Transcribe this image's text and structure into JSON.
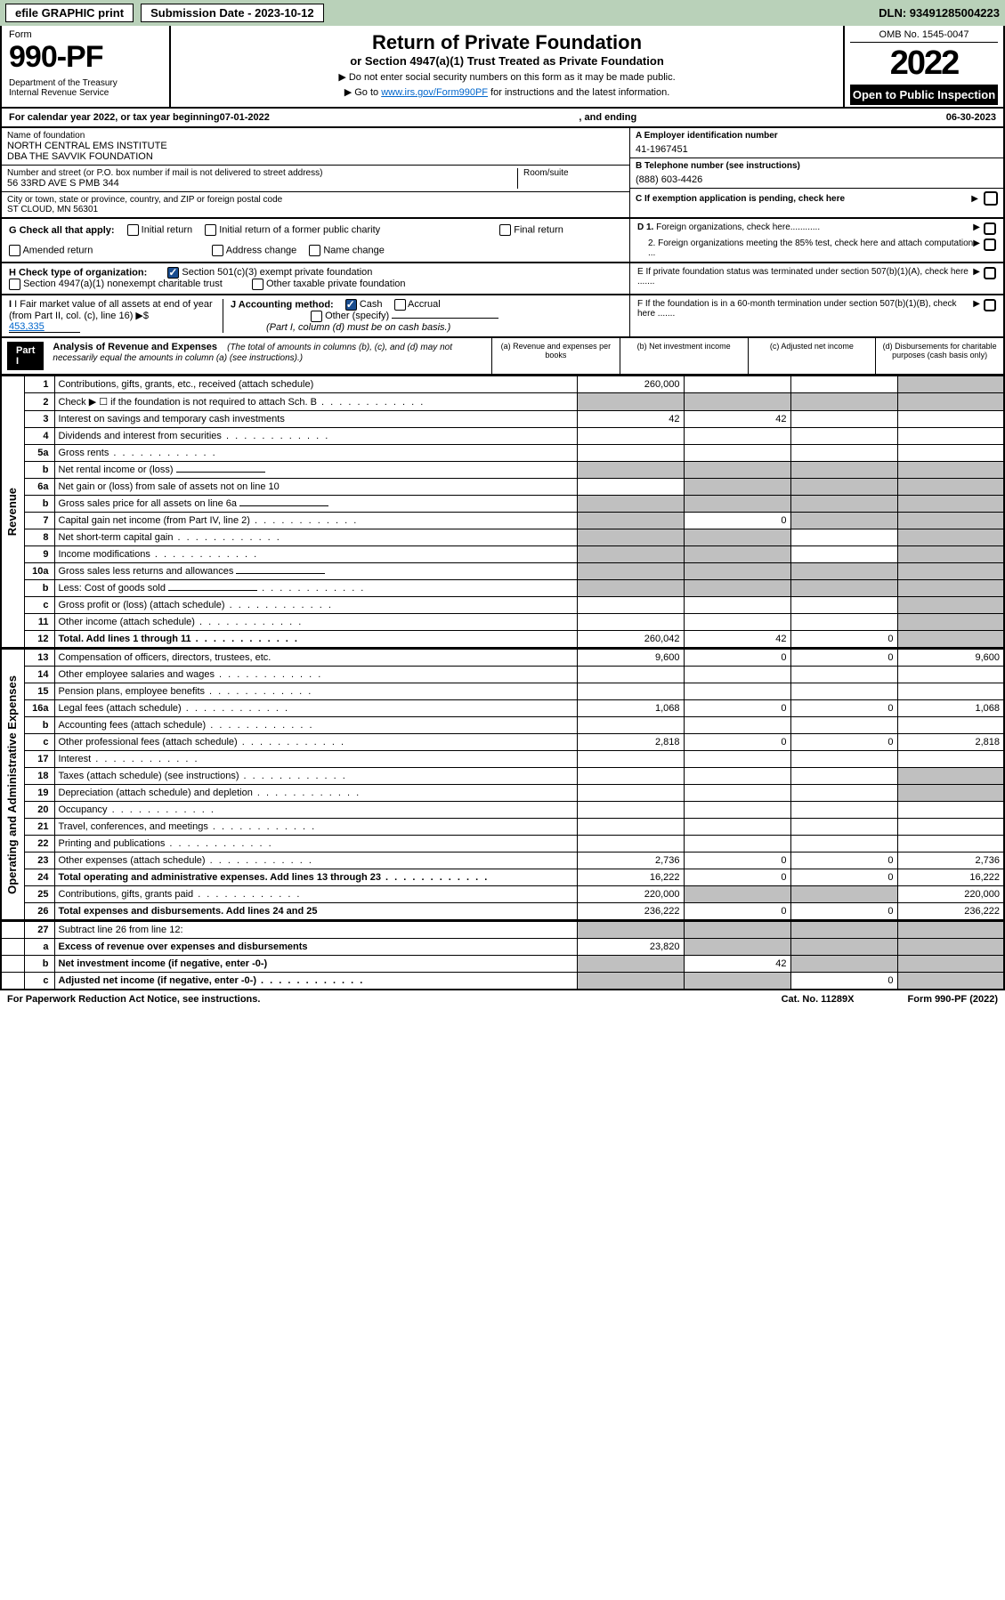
{
  "top": {
    "efile": "efile GRAPHIC print",
    "submission_label": "Submission Date - 2023-10-12",
    "dln": "DLN: 93491285004223"
  },
  "header": {
    "form_word": "Form",
    "form_num": "990-PF",
    "dept": "Department of the Treasury\nInternal Revenue Service",
    "title": "Return of Private Foundation",
    "subtitle": "or Section 4947(a)(1) Trust Treated as Private Foundation",
    "note1": "▶ Do not enter social security numbers on this form as it may be made public.",
    "note2_pre": "▶ Go to ",
    "note2_link": "www.irs.gov/Form990PF",
    "note2_post": " for instructions and the latest information.",
    "omb": "OMB No. 1545-0047",
    "year": "2022",
    "open": "Open to Public Inspection"
  },
  "cal": {
    "text_pre": "For calendar year 2022, or tax year beginning ",
    "begin": "07-01-2022",
    "text_mid": ", and ending ",
    "end": "06-30-2023"
  },
  "info": {
    "name_label": "Name of foundation",
    "name": "NORTH CENTRAL EMS INSTITUTE\nDBA THE SAVVIK FOUNDATION",
    "addr_label": "Number and street (or P.O. box number if mail is not delivered to street address)",
    "addr": "56 33RD AVE S PMB 344",
    "room_label": "Room/suite",
    "city_label": "City or town, state or province, country, and ZIP or foreign postal code",
    "city": "ST CLOUD, MN  56301",
    "a_label": "A Employer identification number",
    "a_val": "41-1967451",
    "b_label": "B Telephone number (see instructions)",
    "b_val": "(888) 603-4426",
    "c_label": "C If exemption application is pending, check here"
  },
  "checks": {
    "g_label": "G Check all that apply:",
    "g_opts": [
      "Initial return",
      "Initial return of a former public charity",
      "Final return",
      "Amended return",
      "Address change",
      "Name change"
    ],
    "h_label": "H Check type of organization:",
    "h_opt1": "Section 501(c)(3) exempt private foundation",
    "h_opt2": "Section 4947(a)(1) nonexempt charitable trust",
    "h_opt3": "Other taxable private foundation",
    "i_label": "I Fair market value of all assets at end of year (from Part II, col. (c), line 16)",
    "i_val": "453,335",
    "j_label": "J Accounting method:",
    "j_cash": "Cash",
    "j_accrual": "Accrual",
    "j_other": "Other (specify)",
    "j_note": "(Part I, column (d) must be on cash basis.)",
    "d1": "D 1. Foreign organizations, check here............",
    "d2": "2. Foreign organizations meeting the 85% test, check here and attach computation ...",
    "e": "E If private foundation status was terminated under section 507(b)(1)(A), check here .......",
    "f": "F  If the foundation is in a 60-month termination under section 507(b)(1)(B), check here ......."
  },
  "part1": {
    "label": "Part I",
    "title": "Analysis of Revenue and Expenses",
    "desc": "(The total of amounts in columns (b), (c), and (d) may not necessarily equal the amounts in column (a) (see instructions).)",
    "col_a": "(a)    Revenue and expenses per books",
    "col_b": "(b)    Net investment income",
    "col_c": "(c)    Adjusted net income",
    "col_d": "(d)   Disbursements for charitable purposes (cash basis only)"
  },
  "sides": {
    "revenue": "Revenue",
    "expenses": "Operating and Administrative Expenses"
  },
  "rows": [
    {
      "n": "1",
      "label": "Contributions, gifts, grants, etc., received (attach schedule)",
      "a": "260,000",
      "d_grey": true
    },
    {
      "n": "2",
      "label": "Check ▶ ☐ if the foundation is not required to attach Sch. B",
      "allgrey": true,
      "dots": true
    },
    {
      "n": "3",
      "label": "Interest on savings and temporary cash investments",
      "a": "42",
      "b": "42"
    },
    {
      "n": "4",
      "label": "Dividends and interest from securities",
      "dots": true
    },
    {
      "n": "5a",
      "label": "Gross rents",
      "dots": true
    },
    {
      "n": "b",
      "label": "Net rental income or (loss)",
      "inline_box": true,
      "cd_grey": true,
      "a_grey": true,
      "b_grey": true
    },
    {
      "n": "6a",
      "label": "Net gain or (loss) from sale of assets not on line 10",
      "bcd_grey": true
    },
    {
      "n": "b",
      "label": "Gross sales price for all assets on line 6a",
      "inline_box": true,
      "allgrey": true
    },
    {
      "n": "7",
      "label": "Capital gain net income (from Part IV, line 2)",
      "dots": true,
      "a_grey": true,
      "b": "0",
      "cd_grey": true
    },
    {
      "n": "8",
      "label": "Net short-term capital gain",
      "dots": true,
      "ab_grey": true,
      "d_grey": true
    },
    {
      "n": "9",
      "label": "Income modifications",
      "dots": true,
      "ab_grey": true,
      "d_grey": true
    },
    {
      "n": "10a",
      "label": "Gross sales less returns and allowances",
      "inline_box": true,
      "allgrey": true
    },
    {
      "n": "b",
      "label": "Less: Cost of goods sold",
      "inline_box": true,
      "dots": true,
      "allgrey": true
    },
    {
      "n": "c",
      "label": "Gross profit or (loss) (attach schedule)",
      "dots": true,
      "d_grey": true
    },
    {
      "n": "11",
      "label": "Other income (attach schedule)",
      "dots": true,
      "d_grey": true
    },
    {
      "n": "12",
      "label": "Total. Add lines 1 through 11",
      "bold": true,
      "dots": true,
      "a": "260,042",
      "b": "42",
      "c": "0",
      "d_grey": true
    }
  ],
  "exp_rows": [
    {
      "n": "13",
      "label": "Compensation of officers, directors, trustees, etc.",
      "a": "9,600",
      "b": "0",
      "c": "0",
      "d": "9,600"
    },
    {
      "n": "14",
      "label": "Other employee salaries and wages",
      "dots": true
    },
    {
      "n": "15",
      "label": "Pension plans, employee benefits",
      "dots": true
    },
    {
      "n": "16a",
      "label": "Legal fees (attach schedule)",
      "dots": true,
      "a": "1,068",
      "b": "0",
      "c": "0",
      "d": "1,068"
    },
    {
      "n": "b",
      "label": "Accounting fees (attach schedule)",
      "dots": true
    },
    {
      "n": "c",
      "label": "Other professional fees (attach schedule)",
      "dots": true,
      "a": "2,818",
      "b": "0",
      "c": "0",
      "d": "2,818"
    },
    {
      "n": "17",
      "label": "Interest",
      "dots": true
    },
    {
      "n": "18",
      "label": "Taxes (attach schedule) (see instructions)",
      "dots": true,
      "d_grey": true
    },
    {
      "n": "19",
      "label": "Depreciation (attach schedule) and depletion",
      "dots": true,
      "d_grey": true
    },
    {
      "n": "20",
      "label": "Occupancy",
      "dots": true
    },
    {
      "n": "21",
      "label": "Travel, conferences, and meetings",
      "dots": true
    },
    {
      "n": "22",
      "label": "Printing and publications",
      "dots": true
    },
    {
      "n": "23",
      "label": "Other expenses (attach schedule)",
      "dots": true,
      "a": "2,736",
      "b": "0",
      "c": "0",
      "d": "2,736"
    },
    {
      "n": "24",
      "label": "Total operating and administrative expenses. Add lines 13 through 23",
      "bold": true,
      "dots": true,
      "a": "16,222",
      "b": "0",
      "c": "0",
      "d": "16,222"
    },
    {
      "n": "25",
      "label": "Contributions, gifts, grants paid",
      "dots": true,
      "a": "220,000",
      "bc_grey": true,
      "d": "220,000"
    },
    {
      "n": "26",
      "label": "Total expenses and disbursements. Add lines 24 and 25",
      "bold": true,
      "a": "236,222",
      "b": "0",
      "c": "0",
      "d": "236,222"
    }
  ],
  "net_rows": [
    {
      "n": "27",
      "label": "Subtract line 26 from line 12:",
      "allgrey": true
    },
    {
      "n": "a",
      "label": "Excess of revenue over expenses and disbursements",
      "bold": true,
      "a": "23,820",
      "bcd_grey": true
    },
    {
      "n": "b",
      "label": "Net investment income (if negative, enter -0-)",
      "bold": true,
      "a_grey": true,
      "b": "42",
      "cd_grey": true
    },
    {
      "n": "c",
      "label": "Adjusted net income (if negative, enter -0-)",
      "bold": true,
      "dots": true,
      "ab_grey": true,
      "c": "0",
      "d_grey": true
    }
  ],
  "footer": {
    "left": "For Paperwork Reduction Act Notice, see instructions.",
    "mid": "Cat. No. 11289X",
    "right": "Form 990-PF (2022)"
  },
  "colors": {
    "topbar_bg": "#b9d1b9",
    "grey_cell": "#c0c0c0",
    "link": "#0066cc",
    "check_blue": "#1a4d8f"
  }
}
